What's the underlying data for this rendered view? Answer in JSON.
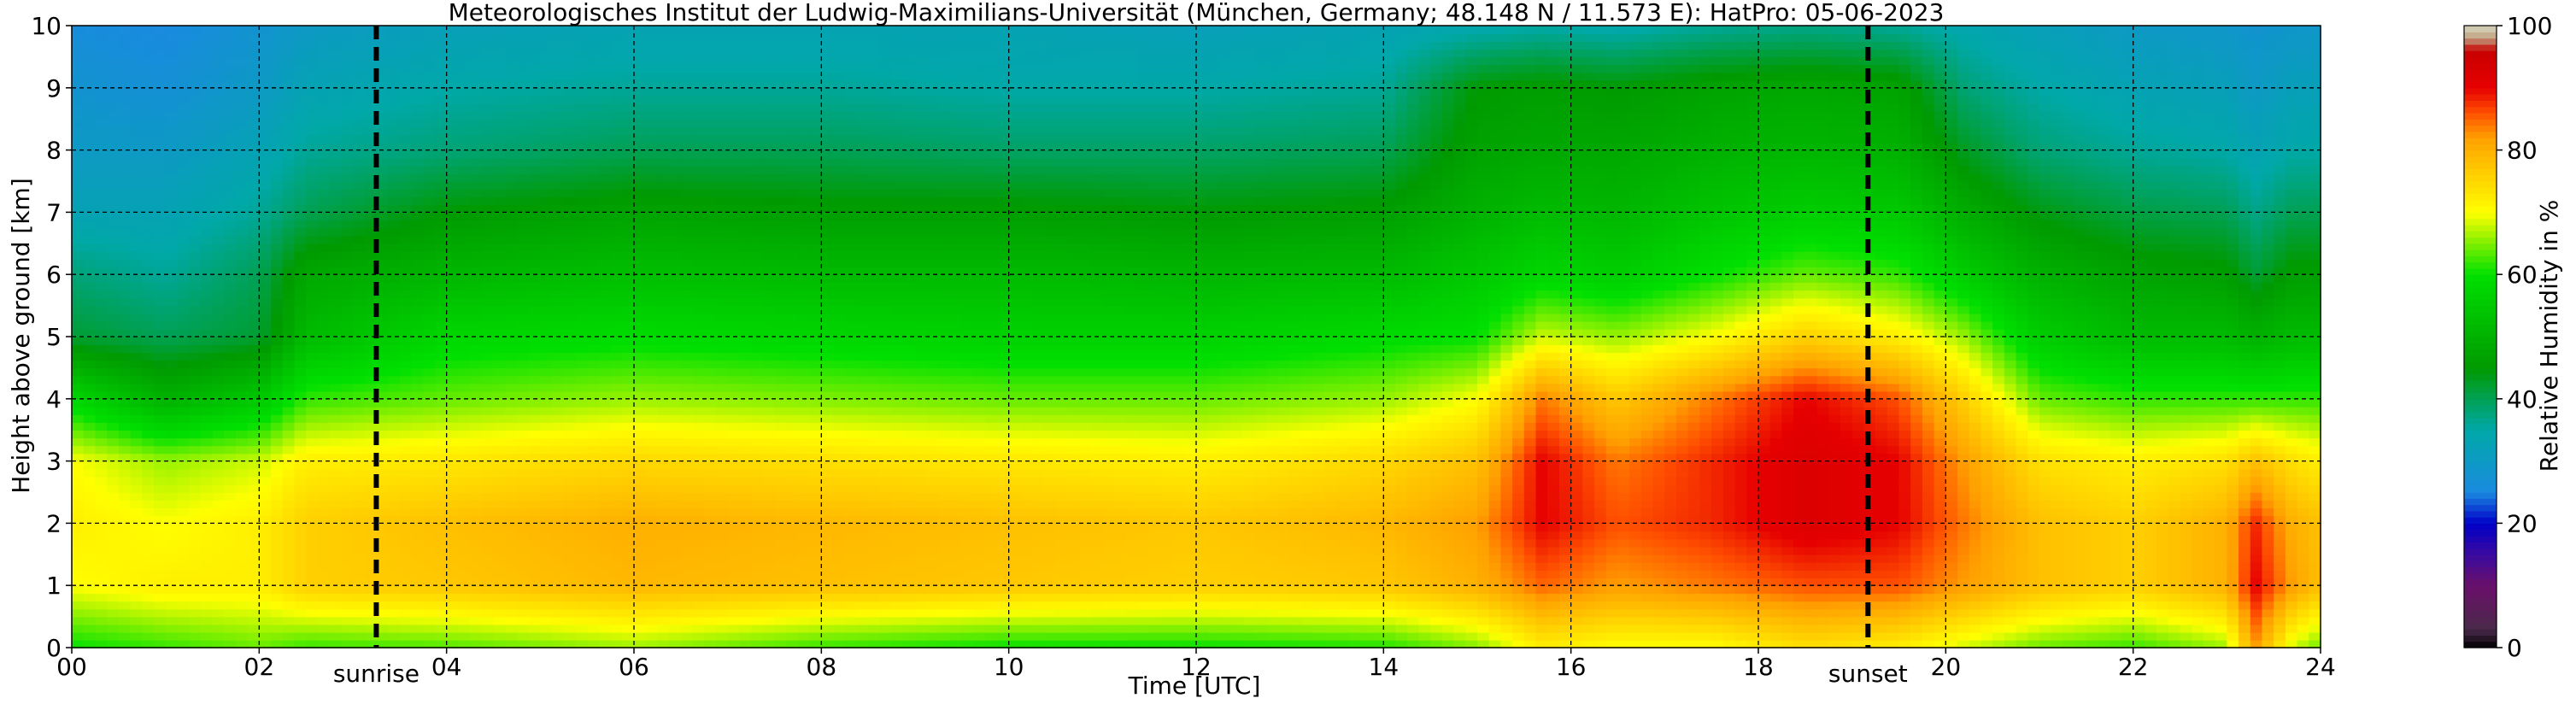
{
  "chart_data": {
    "type": "heatmap",
    "title": "Meteorologisches Institut der Ludwig-Maximilians-Universität (München, Germany; 48.148 N / 11.573 E):    HatPro: 05-06-2023",
    "xlabel": "Time [UTC]",
    "ylabel": "Height above ground [km]",
    "xlim": [
      0,
      24
    ],
    "ylim": [
      0,
      10
    ],
    "x_ticks": [
      "00",
      "02",
      "04",
      "06",
      "08",
      "10",
      "12",
      "14",
      "16",
      "18",
      "20",
      "22",
      "24"
    ],
    "y_ticks": [
      "0",
      "1",
      "2",
      "3",
      "4",
      "5",
      "6",
      "7",
      "8",
      "9",
      "10"
    ],
    "grid": true,
    "colorbar": {
      "label": "Relative Humidity in %",
      "range": [
        0,
        100
      ],
      "ticks": [
        "0",
        "20",
        "40",
        "60",
        "80",
        "100"
      ],
      "colors": [
        "#000000",
        "#4a2a4a",
        "#6a0f6a",
        "#0000c8",
        "#1a8ae0",
        "#00a8a8",
        "#009a00",
        "#00e000",
        "#ffff00",
        "#ffa000",
        "#e60000",
        "#c0a080",
        "#d8d8c0"
      ]
    },
    "annotations": [
      {
        "label": "sunrise",
        "time": 3.25
      },
      {
        "label": "sunset",
        "time": 19.17
      }
    ],
    "rh_profiles": [
      {
        "time": 0.0,
        "rh": [
          60,
          70,
          72,
          70,
          58,
          42,
          38,
          33,
          30,
          28,
          26
        ]
      },
      {
        "time": 1.0,
        "rh": [
          62,
          72,
          70,
          66,
          50,
          40,
          36,
          33,
          30,
          27,
          25
        ]
      },
      {
        "time": 2.0,
        "rh": [
          64,
          72,
          72,
          68,
          55,
          42,
          40,
          36,
          33,
          30,
          28
        ]
      },
      {
        "time": 2.5,
        "rh": [
          62,
          76,
          76,
          72,
          62,
          52,
          48,
          40,
          36,
          33,
          30
        ]
      },
      {
        "time": 4.0,
        "rh": [
          63,
          77,
          78,
          73,
          64,
          58,
          51,
          45,
          38,
          35,
          32
        ]
      },
      {
        "time": 6.0,
        "rh": [
          66,
          79,
          80,
          75,
          66,
          59,
          53,
          47,
          40,
          36,
          33
        ]
      },
      {
        "time": 8.0,
        "rh": [
          62,
          78,
          79,
          74,
          65,
          58,
          52,
          46,
          40,
          36,
          33
        ]
      },
      {
        "time": 10.0,
        "rh": [
          60,
          77,
          78,
          73,
          64,
          57,
          52,
          46,
          39,
          35,
          33
        ]
      },
      {
        "time": 12.0,
        "rh": [
          60,
          76,
          77,
          72,
          64,
          57,
          51,
          45,
          39,
          35,
          32
        ]
      },
      {
        "time": 14.0,
        "rh": [
          61,
          77,
          79,
          75,
          66,
          59,
          52,
          46,
          40,
          36,
          33
        ]
      },
      {
        "time": 15.0,
        "rh": [
          65,
          80,
          82,
          78,
          70,
          60,
          55,
          50,
          47,
          45,
          34
        ]
      },
      {
        "time": 15.7,
        "rh": [
          72,
          85,
          90,
          90,
          84,
          68,
          58,
          52,
          48,
          46,
          35
        ]
      },
      {
        "time": 16.5,
        "rh": [
          70,
          82,
          86,
          84,
          77,
          66,
          56,
          51,
          48,
          45,
          34
        ]
      },
      {
        "time": 17.5,
        "rh": [
          70,
          84,
          88,
          88,
          84,
          70,
          60,
          54,
          50,
          47,
          36
        ]
      },
      {
        "time": 18.5,
        "rh": [
          74,
          86,
          92,
          92,
          90,
          76,
          64,
          56,
          51,
          48,
          37
        ]
      },
      {
        "time": 19.5,
        "rh": [
          72,
          86,
          90,
          90,
          86,
          72,
          62,
          55,
          50,
          47,
          36
        ]
      },
      {
        "time": 20.2,
        "rh": [
          68,
          82,
          84,
          82,
          76,
          66,
          56,
          49,
          43,
          38,
          34
        ]
      },
      {
        "time": 21.0,
        "rh": [
          64,
          78,
          78,
          74,
          64,
          56,
          50,
          44,
          38,
          35,
          32
        ]
      },
      {
        "time": 22.0,
        "rh": [
          62,
          76,
          76,
          72,
          62,
          52,
          47,
          41,
          36,
          33,
          30
        ]
      },
      {
        "time": 23.0,
        "rh": [
          66,
          80,
          80,
          74,
          62,
          52,
          46,
          40,
          35,
          32,
          29
        ]
      },
      {
        "time": 23.3,
        "rh": [
          82,
          90,
          88,
          78,
          62,
          50,
          42,
          37,
          33,
          30,
          28
        ]
      },
      {
        "time": 23.7,
        "rh": [
          68,
          82,
          80,
          74,
          62,
          52,
          46,
          40,
          35,
          32,
          29
        ]
      },
      {
        "time": 24.0,
        "rh": [
          64,
          78,
          78,
          72,
          62,
          52,
          46,
          40,
          35,
          32,
          29
        ]
      }
    ]
  }
}
